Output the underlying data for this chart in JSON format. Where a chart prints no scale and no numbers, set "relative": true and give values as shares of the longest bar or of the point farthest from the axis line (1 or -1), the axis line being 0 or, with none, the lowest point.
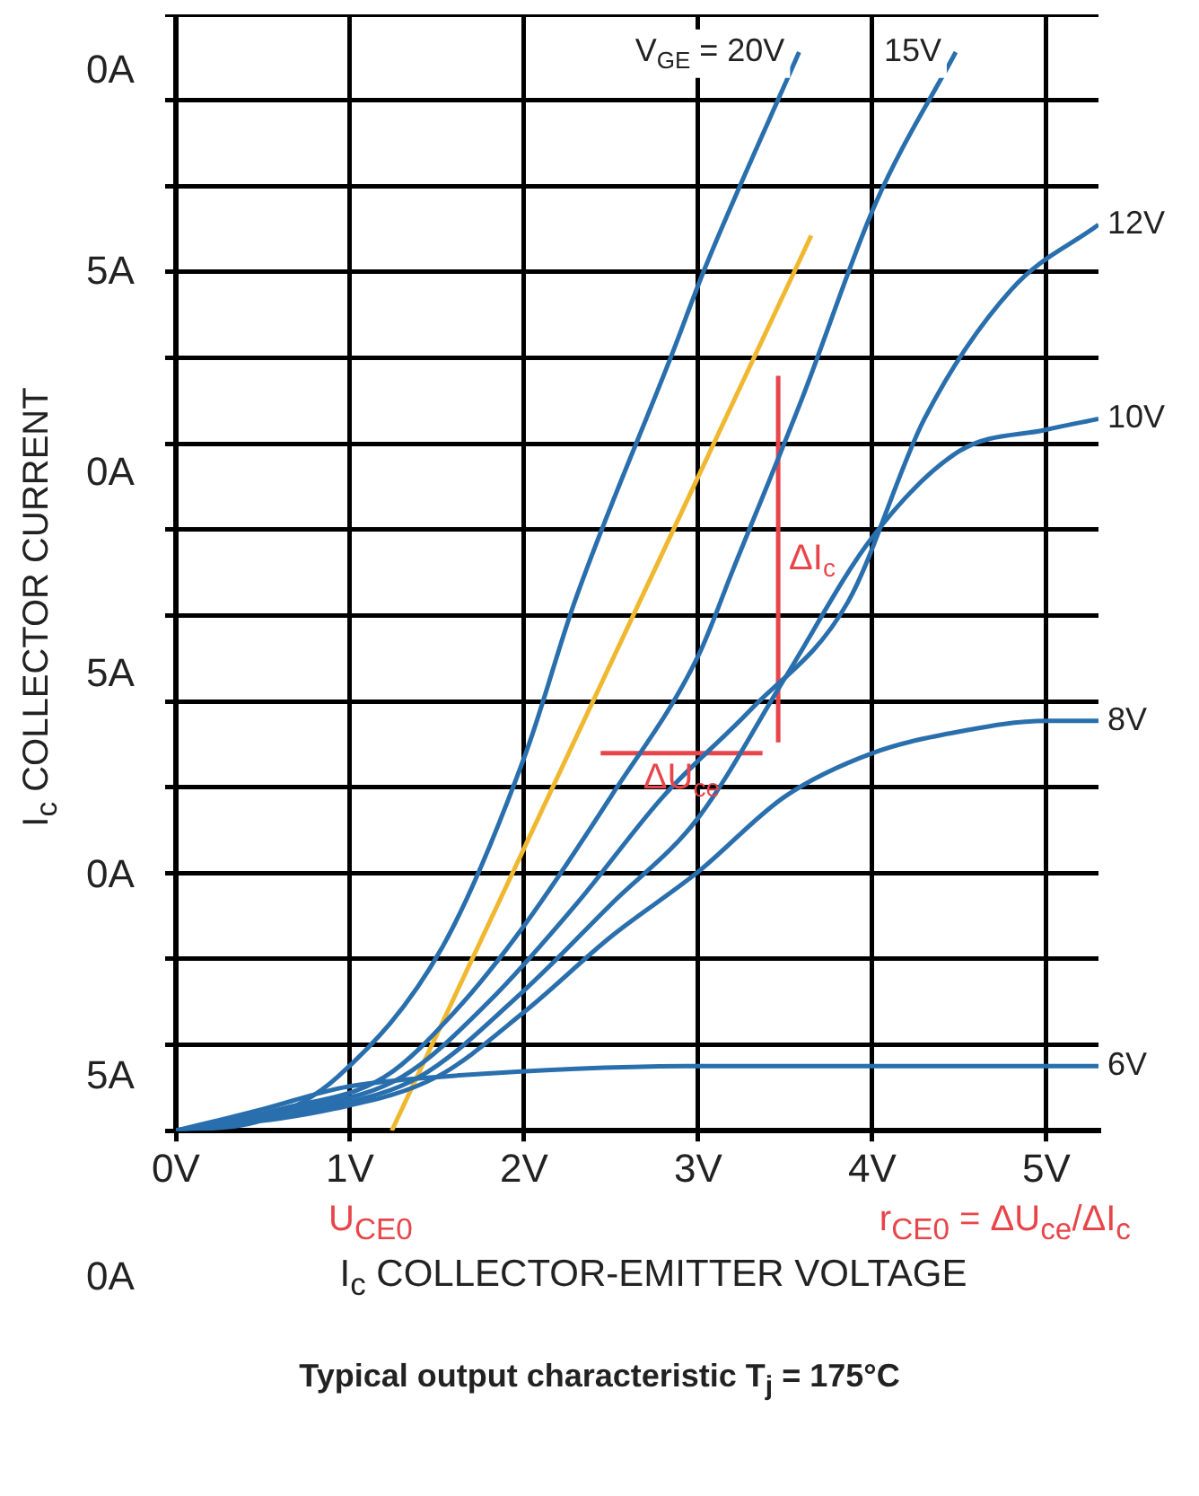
{
  "chart_data": {
    "type": "line",
    "title": "Typical output characteristic T$_{j}$ = 175°C",
    "xlabel": "I$_{c}$ COLLECTOR-EMITTER VOLTAGE",
    "ylabel": "I$_{c}$ COLLECTOR CURRENT",
    "relative": true,
    "xlim": [
      0,
      5.3
    ],
    "xticks": [
      {
        "value": 0,
        "label": "0V"
      },
      {
        "value": 1,
        "label": "1V"
      },
      {
        "value": 2,
        "label": "2V"
      },
      {
        "value": 3,
        "label": "3V"
      },
      {
        "value": 4,
        "label": "4V"
      },
      {
        "value": 5,
        "label": "5V"
      }
    ],
    "grid": true,
    "legend": false,
    "marker": "none",
    "line_style": "solid",
    "annotations": [
      "U$_{CE0}$",
      "r$_{CE0}$ = ΔU$_{ce}$/ΔI$_{c}$",
      "0A",
      "5A",
      "0A",
      "5A",
      "0A",
      "5A",
      "0A"
    ],
    "series": [
      {
        "name": "V$_{GE}$ = 20V",
        "color": "#2a6fad",
        "x": [
          0,
          0.5,
          0.93,
          1.53,
          2.01,
          2.29,
          2.85,
          3.04,
          3.58
        ],
        "values": [
          0,
          0.01,
          0.05,
          0.17,
          0.35,
          0.49,
          0.72,
          0.8,
          1
        ]
      },
      {
        "name": "15V",
        "color": "#2a6fad",
        "x": [
          0,
          0.6,
          1.2,
          1.6,
          2.0,
          2.5,
          3.0,
          3.2,
          3.6,
          4.02,
          4.48
        ],
        "values": [
          0,
          0.02,
          0.05,
          0.11,
          0.19,
          0.31,
          0.44,
          0.52,
          0.68,
          0.86,
          1
        ]
      },
      {
        "name": "12V",
        "color": "#2a6fad",
        "x": [
          0,
          0.7,
          1.3,
          1.8,
          2.3,
          2.8,
          3.3,
          3.86,
          4.3,
          4.8,
          5.3
        ],
        "values": [
          0,
          0.02,
          0.05,
          0.12,
          0.21,
          0.31,
          0.39,
          0.49,
          0.66,
          0.78,
          0.84
        ]
      },
      {
        "name": "10V",
        "color": "#2a6fad",
        "x": [
          0,
          0.8,
          1.4,
          2.0,
          2.5,
          3.0,
          3.5,
          4.0,
          4.5,
          5.0,
          5.3
        ],
        "values": [
          0,
          0.02,
          0.05,
          0.13,
          0.21,
          0.29,
          0.42,
          0.55,
          0.63,
          0.65,
          0.66
        ]
      },
      {
        "name": "8V",
        "color": "#2a6fad",
        "x": [
          0,
          0.9,
          1.5,
          2.0,
          2.5,
          3.0,
          3.5,
          4.0,
          4.5,
          5.0,
          5.3
        ],
        "values": [
          0,
          0.02,
          0.05,
          0.11,
          0.18,
          0.24,
          0.31,
          0.35,
          0.37,
          0.38,
          0.38
        ]
      },
      {
        "name": "6V",
        "color": "#2a6fad",
        "x": [
          0,
          0.5,
          0.96,
          1.52,
          3.0,
          5.3
        ],
        "values": [
          0,
          0.02,
          0.04,
          0.05,
          0.06,
          0.06
        ]
      },
      {
        "color": "#f0b830",
        "x": [
          1.24,
          3.65
        ],
        "values": [
          0,
          0.83
        ]
      },
      {
        "name": "ΔI$_{c}$",
        "color": "#e8454a",
        "x": [
          3.46,
          3.46
        ],
        "values": [
          0.7,
          0.36
        ]
      },
      {
        "name": "ΔU$_{ce}$",
        "color": "#e8454a",
        "x": [
          3.37,
          2.44
        ],
        "values": [
          0.35,
          0.35
        ]
      }
    ]
  }
}
